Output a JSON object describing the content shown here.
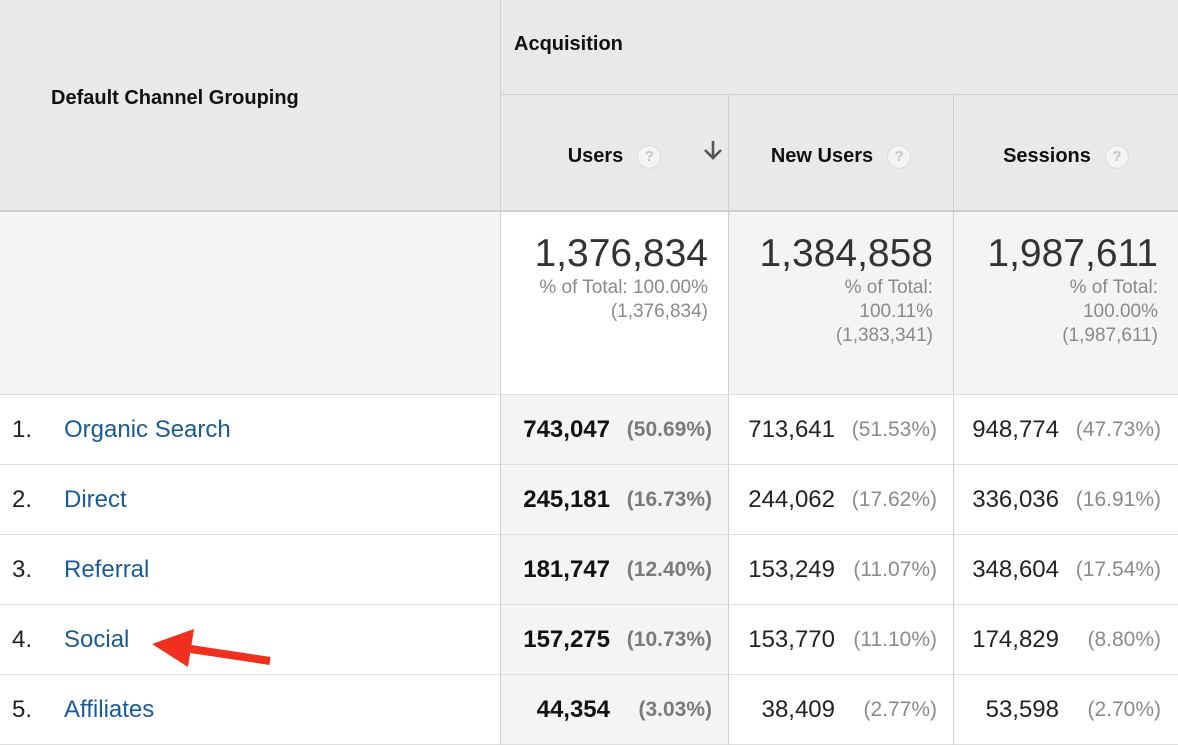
{
  "header": {
    "dimension": "Default Channel Grouping",
    "group": "Acquisition",
    "metrics": [
      "Users",
      "New Users",
      "Sessions"
    ],
    "help_glyph": "?",
    "sort_icon": "arrow-down-icon"
  },
  "totals": [
    {
      "value": "1,376,834",
      "lines": [
        "% of Total: 100.00%",
        "(1,376,834)"
      ]
    },
    {
      "value": "1,384,858",
      "lines": [
        "% of Total:",
        "100.11%",
        "(1,383,341)"
      ]
    },
    {
      "value": "1,987,611",
      "lines": [
        "% of Total:",
        "100.00%",
        "(1,987,611)"
      ]
    }
  ],
  "rows": [
    {
      "index": "1.",
      "channel": "Organic Search",
      "users": "743,047",
      "users_pct": "(50.69%)",
      "new_users": "713,641",
      "new_users_pct": "(51.53%)",
      "sessions": "948,774",
      "sessions_pct": "(47.73%)"
    },
    {
      "index": "2.",
      "channel": "Direct",
      "users": "245,181",
      "users_pct": "(16.73%)",
      "new_users": "244,062",
      "new_users_pct": "(17.62%)",
      "sessions": "336,036",
      "sessions_pct": "(16.91%)"
    },
    {
      "index": "3.",
      "channel": "Referral",
      "users": "181,747",
      "users_pct": "(12.40%)",
      "new_users": "153,249",
      "new_users_pct": "(11.07%)",
      "sessions": "348,604",
      "sessions_pct": "(17.54%)"
    },
    {
      "index": "4.",
      "channel": "Social",
      "users": "157,275",
      "users_pct": "(10.73%)",
      "new_users": "153,770",
      "new_users_pct": "(11.10%)",
      "sessions": "174,829",
      "sessions_pct": "(8.80%)"
    },
    {
      "index": "5.",
      "channel": "Affiliates",
      "users": "44,354",
      "users_pct": "(3.03%)",
      "new_users": "38,409",
      "new_users_pct": "(2.77%)",
      "sessions": "53,598",
      "sessions_pct": "(2.70%)"
    }
  ],
  "annotation": {
    "icon": "red-arrow-icon",
    "color": "#f0301e"
  },
  "colors": {
    "link": "#1a5a96",
    "header_bg": "#e9e9e9",
    "sorted_bg": "#f4f4f4"
  }
}
